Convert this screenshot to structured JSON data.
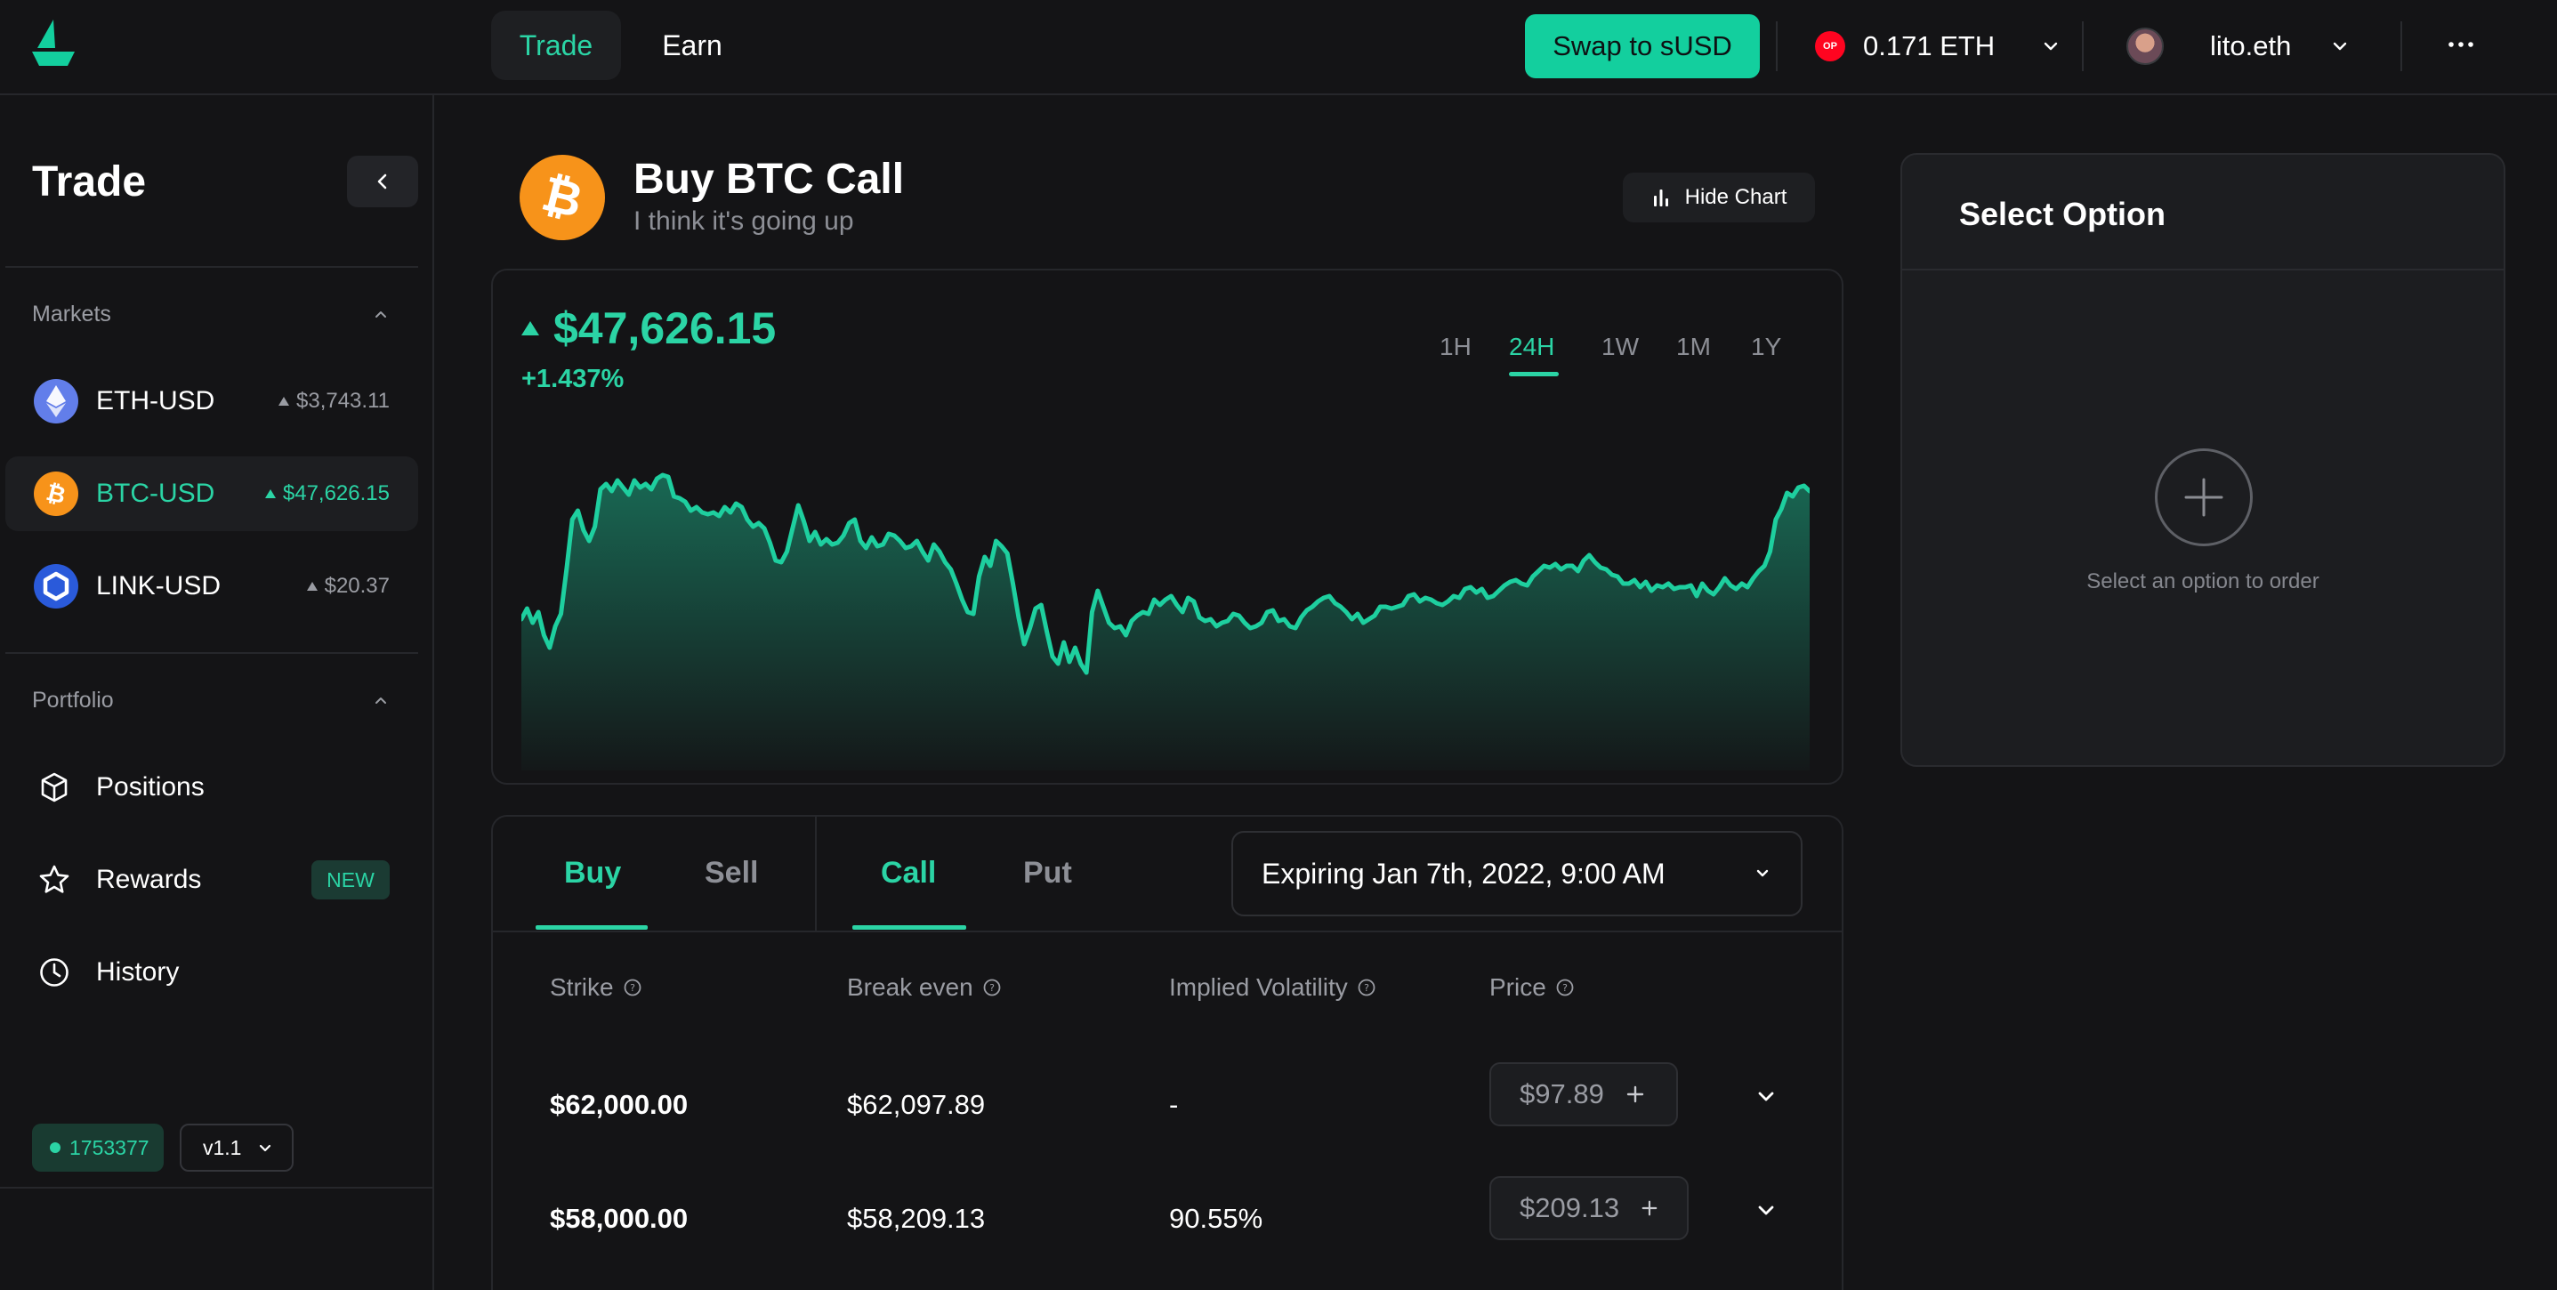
{
  "nav": {
    "trade": "Trade",
    "earn": "Earn",
    "swap_button": "Swap to sUSD",
    "network_badge": "OP",
    "wallet_balance": "0.171 ETH",
    "account_name": "lito.eth"
  },
  "sidebar": {
    "title": "Trade",
    "markets_label": "Markets",
    "markets": [
      {
        "name": "ETH-USD",
        "price": "$3,743.11",
        "icon": "eth-icon",
        "active": false
      },
      {
        "name": "BTC-USD",
        "price": "$47,626.15",
        "icon": "btc-icon",
        "active": true
      },
      {
        "name": "LINK-USD",
        "price": "$20.37",
        "icon": "link-icon",
        "active": false
      }
    ],
    "portfolio_label": "Portfolio",
    "portfolio": [
      {
        "label": "Positions",
        "icon": "cube-icon"
      },
      {
        "label": "Rewards",
        "icon": "star-icon",
        "badge": "NEW"
      },
      {
        "label": "History",
        "icon": "clock-icon"
      }
    ],
    "block_number": "1753377",
    "version": "v1.1"
  },
  "header": {
    "title": "Buy BTC Call",
    "subtitle": "I think it's going up",
    "hide_chart": "Hide Chart"
  },
  "chart": {
    "price": "$47,626.15",
    "change": "+1.437%",
    "ranges": [
      "1H",
      "24H",
      "1W",
      "1M",
      "1Y"
    ],
    "active_range": "24H"
  },
  "chart_data": {
    "type": "area",
    "title": "",
    "xlabel": "",
    "ylabel": "",
    "color": "#1ecf9f",
    "values": [
      46520,
      46580,
      46500,
      46560,
      46430,
      46360,
      46480,
      46550,
      46800,
      47080,
      47130,
      47020,
      46960,
      47040,
      47250,
      47280,
      47240,
      47300,
      47260,
      47220,
      47300,
      47260,
      47280,
      47250,
      47310,
      47330,
      47320,
      47210,
      47200,
      47180,
      47130,
      47150,
      47120,
      47110,
      47120,
      47100,
      47150,
      47120,
      47170,
      47150,
      47080,
      47040,
      47060,
      47030,
      46950,
      46850,
      46840,
      46900,
      47030,
      47160,
      47070,
      46960,
      47010,
      46940,
      46970,
      46940,
      46950,
      46990,
      47060,
      47080,
      46960,
      46920,
      46980,
      46930,
      46940,
      47000,
      46990,
      46960,
      46920,
      46930,
      46960,
      46900,
      46850,
      46940,
      46900,
      46840,
      46800,
      46720,
      46630,
      46560,
      46550,
      46760,
      46870,
      46820,
      46960,
      46930,
      46890,
      46720,
      46530,
      46380,
      46470,
      46580,
      46600,
      46450,
      46310,
      46270,
      46390,
      46280,
      46360,
      46270,
      46220,
      46560,
      46680,
      46590,
      46500,
      46470,
      46480,
      46430,
      46510,
      46540,
      46560,
      46550,
      46630,
      46600,
      46630,
      46650,
      46600,
      46560,
      46640,
      46620,
      46530,
      46510,
      46520,
      46480,
      46500,
      46510,
      46550,
      46540,
      46500,
      46470,
      46480,
      46500,
      46560,
      46570,
      46510,
      46520,
      46480,
      46470,
      46530,
      46570,
      46590,
      46620,
      46640,
      46650,
      46610,
      46590,
      46560,
      46520,
      46550,
      46500,
      46520,
      46540,
      46590,
      46590,
      46580,
      46590,
      46600,
      46650,
      46660,
      46620,
      46640,
      46630,
      46610,
      46600,
      46620,
      46650,
      46640,
      46690,
      46700,
      46670,
      46690,
      46640,
      46650,
      46680,
      46710,
      46730,
      46740,
      46720,
      46710,
      46760,
      46790,
      46820,
      46810,
      46830,
      46800,
      46820,
      46820,
      46790,
      46850,
      46880,
      46840,
      46810,
      46800,
      46770,
      46760,
      46720,
      46720,
      46740,
      46700,
      46730,
      46680,
      46710,
      46700,
      46720,
      46690,
      46700,
      46700,
      46710,
      46650,
      46720,
      46680,
      46660,
      46700,
      46750,
      46710,
      46690,
      46720,
      46700,
      46750,
      46790,
      46820,
      46900,
      47080,
      47140,
      47230,
      47210,
      47260,
      47270,
      47240
    ]
  },
  "order": {
    "side_tabs": [
      "Buy",
      "Sell"
    ],
    "type_tabs": [
      "Call",
      "Put"
    ],
    "expiry": "Expiring Jan 7th, 2022, 9:00 AM",
    "columns": [
      "Strike",
      "Break even",
      "Implied Volatility",
      "Price"
    ],
    "rows": [
      {
        "strike": "$62,000.00",
        "break_even": "$62,097.89",
        "iv": "-",
        "price": "$97.89"
      },
      {
        "strike": "$58,000.00",
        "break_even": "$58,209.13",
        "iv": "90.55%",
        "price": "$209.13"
      }
    ]
  },
  "select_panel": {
    "title": "Select Option",
    "hint": "Select an option to order"
  }
}
